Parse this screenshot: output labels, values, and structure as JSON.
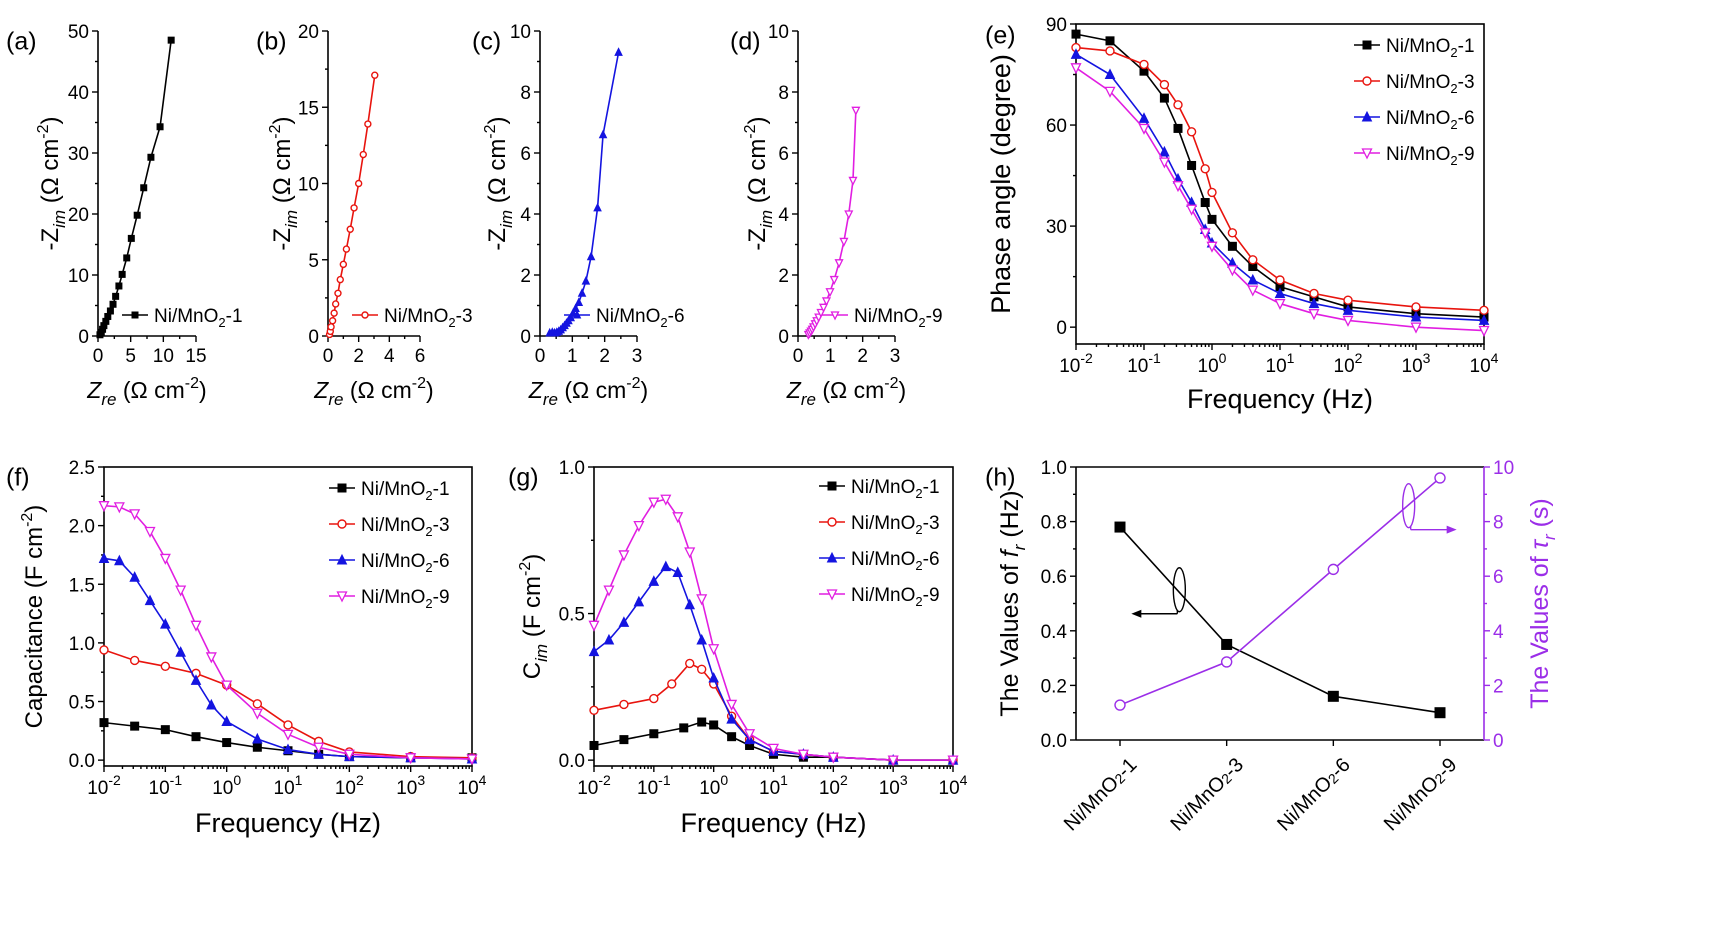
{
  "colors": {
    "ni1": "#000000",
    "ni3": "#e8140e",
    "ni6": "#1414e0",
    "ni9": "#e11ee1",
    "violet": "#9b2ee8"
  },
  "chart_data": [
    {
      "id": "a",
      "type": "line",
      "panel_label": "(a)",
      "xlabel": "Z_re (Ω cm^-2)",
      "ylabel": "-Z_im (Ω cm^-2)",
      "xlim": [
        0,
        15
      ],
      "ylim": [
        0,
        50
      ],
      "xticks": [
        0,
        5,
        10,
        15
      ],
      "xticklabels": [
        "0",
        "5",
        "10",
        "15"
      ],
      "yticks": [
        0,
        10,
        20,
        30,
        40,
        50
      ],
      "yticklabels": [
        "0",
        "10",
        "20",
        "30",
        "40",
        "50"
      ],
      "series": [
        {
          "name": "Ni/MnO2-1",
          "label_main": "Ni/MnO",
          "label_sub": "2",
          "label_tail": "-1",
          "color": "ni1",
          "marker": "square_filled",
          "x": [
            0.3,
            0.5,
            0.7,
            0.9,
            1.2,
            1.5,
            1.9,
            2.3,
            2.7,
            3.2,
            3.7,
            4.4,
            5.1,
            6.0,
            7.0,
            8.1,
            9.5,
            11.2
          ],
          "y": [
            0.2,
            0.6,
            1.1,
            1.7,
            2.4,
            3.2,
            4.1,
            5.2,
            6.5,
            8.2,
            10.1,
            12.8,
            16.0,
            19.8,
            24.3,
            29.3,
            34.3,
            48.5
          ]
        }
      ]
    },
    {
      "id": "b",
      "type": "line",
      "panel_label": "(b)",
      "xlabel": "Z_re (Ω cm^-2)",
      "ylabel": "-Z_im (Ω cm^-2)",
      "xlim": [
        0,
        6
      ],
      "ylim": [
        0,
        20
      ],
      "xticks": [
        0,
        2,
        4,
        6
      ],
      "xticklabels": [
        "0",
        "2",
        "4",
        "6"
      ],
      "yticks": [
        0,
        5,
        10,
        15,
        20
      ],
      "yticklabels": [
        "0",
        "5",
        "10",
        "15",
        "20"
      ],
      "series": [
        {
          "name": "Ni/MnO2-3",
          "label_main": "Ni/MnO",
          "label_sub": "2",
          "label_tail": "-3",
          "color": "ni3",
          "marker": "circle_open",
          "x": [
            0.1,
            0.15,
            0.2,
            0.3,
            0.4,
            0.5,
            0.65,
            0.8,
            1.0,
            1.2,
            1.45,
            1.7,
            2.0,
            2.3,
            2.6,
            3.05
          ],
          "y": [
            0.1,
            0.3,
            0.6,
            1.0,
            1.5,
            2.1,
            2.8,
            3.7,
            4.7,
            5.7,
            7.0,
            8.4,
            10.0,
            11.9,
            13.9,
            17.1
          ]
        }
      ]
    },
    {
      "id": "c",
      "type": "line",
      "panel_label": "(c)",
      "xlabel": "Z_re (Ω cm^-2)",
      "ylabel": "-Z_im (Ω cm^-2)",
      "xlim": [
        0,
        3
      ],
      "ylim": [
        0,
        10
      ],
      "xticks": [
        0,
        1,
        2,
        3
      ],
      "xticklabels": [
        "0",
        "1",
        "2",
        "3"
      ],
      "yticks": [
        0,
        2,
        4,
        6,
        8,
        10
      ],
      "yticklabels": [
        "0",
        "2",
        "4",
        "6",
        "8",
        "10"
      ],
      "series": [
        {
          "name": "Ni/MnO2-6",
          "label_main": "Ni/MnO",
          "label_sub": "2",
          "label_tail": "-6",
          "color": "ni6",
          "marker": "triangle_filled",
          "x": [
            0.3,
            0.38,
            0.45,
            0.52,
            0.58,
            0.64,
            0.7,
            0.76,
            0.82,
            0.88,
            0.95,
            1.02,
            1.1,
            1.2,
            1.3,
            1.42,
            1.58,
            1.78,
            1.95,
            2.43
          ],
          "y": [
            0.1,
            0.12,
            0.1,
            0.12,
            0.15,
            0.2,
            0.27,
            0.34,
            0.42,
            0.5,
            0.6,
            0.74,
            0.9,
            1.1,
            1.4,
            1.8,
            2.6,
            4.2,
            6.6,
            9.3
          ]
        }
      ]
    },
    {
      "id": "d",
      "type": "line",
      "panel_label": "(d)",
      "xlabel": "Z_re (Ω cm^-2)",
      "ylabel": "-Z_im (Ω cm^-2)",
      "xlim": [
        0,
        3
      ],
      "ylim": [
        0,
        10
      ],
      "xticks": [
        0,
        1,
        2,
        3
      ],
      "xticklabels": [
        "0",
        "1",
        "2",
        "3"
      ],
      "yticks": [
        0,
        2,
        4,
        6,
        8,
        10
      ],
      "yticklabels": [
        "0",
        "2",
        "4",
        "6",
        "8",
        "10"
      ],
      "series": [
        {
          "name": "Ni/MnO2-9",
          "label_main": "Ni/MnO",
          "label_sub": "2",
          "label_tail": "-9",
          "color": "ni9",
          "marker": "triangle_down_open",
          "x": [
            0.32,
            0.36,
            0.4,
            0.44,
            0.48,
            0.53,
            0.58,
            0.64,
            0.71,
            0.79,
            0.88,
            0.99,
            1.12,
            1.27,
            1.42,
            1.57,
            1.7,
            1.79
          ],
          "y": [
            0.05,
            0.1,
            0.16,
            0.22,
            0.3,
            0.4,
            0.5,
            0.62,
            0.77,
            0.94,
            1.15,
            1.45,
            1.85,
            2.4,
            3.1,
            4.0,
            5.1,
            7.4
          ]
        }
      ]
    },
    {
      "id": "e",
      "type": "line",
      "panel_label": "(e)",
      "xscale": "log",
      "xlabel": "Frequency (Hz)",
      "ylabel": "Phase angle (degree)",
      "xlim": [
        -2,
        4
      ],
      "ylim": [
        -5,
        90
      ],
      "xticks": [
        -2,
        -1,
        0,
        1,
        2,
        3,
        4
      ],
      "xticklabels": [
        "10^-2",
        "10^-1",
        "10^0",
        "10^1",
        "10^2",
        "10^3",
        "10^4"
      ],
      "yticks": [
        0,
        30,
        60,
        90
      ],
      "yticklabels": [
        "0",
        "30",
        "60",
        "90"
      ],
      "legend": "top-right",
      "series": [
        {
          "name": "Ni/MnO2-1",
          "label_main": "Ni/MnO",
          "label_sub": "2",
          "label_tail": "-1",
          "color": "ni1",
          "marker": "square_filled",
          "logx": [
            -2,
            -1.5,
            -1,
            -0.7,
            -0.5,
            -0.3,
            -0.1,
            0,
            0.3,
            0.6,
            1,
            1.5,
            2,
            3,
            4
          ],
          "y": [
            87,
            85,
            76,
            68,
            59,
            48,
            37,
            32,
            24,
            18,
            12,
            9,
            6,
            4,
            3
          ]
        },
        {
          "name": "Ni/MnO2-3",
          "label_main": "Ni/MnO",
          "label_sub": "2",
          "label_tail": "-3",
          "color": "ni3",
          "marker": "circle_open",
          "logx": [
            -2,
            -1.5,
            -1,
            -0.7,
            -0.5,
            -0.3,
            -0.1,
            0,
            0.3,
            0.6,
            1,
            1.5,
            2,
            3,
            4
          ],
          "y": [
            83,
            82,
            78,
            72,
            66,
            58,
            47,
            40,
            28,
            20,
            14,
            10,
            8,
            6,
            5
          ]
        },
        {
          "name": "Ni/MnO2-6",
          "label_main": "Ni/MnO",
          "label_sub": "2",
          "label_tail": "-6",
          "color": "ni6",
          "marker": "triangle_filled",
          "logx": [
            -2,
            -1.5,
            -1,
            -0.7,
            -0.5,
            -0.3,
            -0.1,
            0,
            0.3,
            0.6,
            1,
            1.5,
            2,
            3,
            4
          ],
          "y": [
            81,
            75,
            62,
            52,
            44,
            37,
            29,
            25,
            19,
            14,
            10,
            7,
            5,
            3,
            2
          ]
        },
        {
          "name": "Ni/MnO2-9",
          "label_main": "Ni/MnO",
          "label_sub": "2",
          "label_tail": "-9",
          "color": "ni9",
          "marker": "triangle_down_open",
          "logx": [
            -2,
            -1.5,
            -1,
            -0.7,
            -0.5,
            -0.3,
            -0.1,
            0,
            0.3,
            0.6,
            1,
            1.5,
            2,
            3,
            4
          ],
          "y": [
            77,
            70,
            59,
            49,
            42,
            35,
            28,
            24,
            17,
            11,
            7,
            4,
            2,
            0,
            -1
          ]
        }
      ]
    },
    {
      "id": "f",
      "type": "line",
      "panel_label": "(f)",
      "xscale": "log",
      "xlabel": "Frequency (Hz)",
      "ylabel": "Capacitance (F cm^-2)",
      "xlim": [
        -2,
        4
      ],
      "ylim": [
        -0.05,
        2.5
      ],
      "xticks": [
        -2,
        -1,
        0,
        1,
        2,
        3,
        4
      ],
      "xticklabels": [
        "10^-2",
        "10^-1",
        "10^0",
        "10^1",
        "10^2",
        "10^3",
        "10^4"
      ],
      "yticks": [
        0,
        0.5,
        1.0,
        1.5,
        2.0,
        2.5
      ],
      "yticklabels": [
        "0.0",
        "0.5",
        "1.0",
        "1.5",
        "2.0",
        "2.5"
      ],
      "legend": "top-right",
      "series": [
        {
          "name": "Ni/MnO2-1",
          "label_main": "Ni/MnO",
          "label_sub": "2",
          "label_tail": "-1",
          "color": "ni1",
          "marker": "square_filled",
          "logx": [
            -2,
            -1.5,
            -1,
            -0.5,
            0,
            0.5,
            1,
            1.5,
            2,
            3,
            4
          ],
          "y": [
            0.32,
            0.29,
            0.26,
            0.2,
            0.15,
            0.11,
            0.08,
            0.05,
            0.03,
            0.02,
            0.02
          ]
        },
        {
          "name": "Ni/MnO2-3",
          "label_main": "Ni/MnO",
          "label_sub": "2",
          "label_tail": "-3",
          "color": "ni3",
          "marker": "circle_open",
          "logx": [
            -2,
            -1.5,
            -1,
            -0.5,
            0,
            0.5,
            1,
            1.5,
            2,
            3,
            4
          ],
          "y": [
            0.94,
            0.85,
            0.8,
            0.74,
            0.64,
            0.48,
            0.3,
            0.16,
            0.07,
            0.03,
            0.02
          ]
        },
        {
          "name": "Ni/MnO2-6",
          "label_main": "Ni/MnO",
          "label_sub": "2",
          "label_tail": "-6",
          "color": "ni6",
          "marker": "triangle_filled",
          "logx": [
            -2,
            -1.75,
            -1.5,
            -1.25,
            -1,
            -0.75,
            -0.5,
            -0.25,
            0,
            0.5,
            1,
            1.5,
            2,
            3,
            4
          ],
          "y": [
            1.72,
            1.7,
            1.56,
            1.36,
            1.16,
            0.92,
            0.68,
            0.47,
            0.33,
            0.18,
            0.09,
            0.05,
            0.03,
            0.02,
            0.01
          ]
        },
        {
          "name": "Ni/MnO2-9",
          "label_main": "Ni/MnO",
          "label_sub": "2",
          "label_tail": "-9",
          "color": "ni9",
          "marker": "triangle_down_open",
          "logx": [
            -2,
            -1.75,
            -1.5,
            -1.25,
            -1,
            -0.75,
            -0.5,
            -0.25,
            0,
            0.5,
            1,
            1.5,
            2,
            3,
            4
          ],
          "y": [
            2.17,
            2.16,
            2.1,
            1.95,
            1.72,
            1.45,
            1.15,
            0.88,
            0.64,
            0.4,
            0.22,
            0.11,
            0.05,
            0.02,
            0.01
          ]
        }
      ]
    },
    {
      "id": "g",
      "type": "line",
      "panel_label": "(g)",
      "xscale": "log",
      "xlabel": "Frequency (Hz)",
      "ylabel": "C_im (F cm^-2)",
      "xlim": [
        -2,
        4
      ],
      "ylim": [
        -0.02,
        1.0
      ],
      "xticks": [
        -2,
        -1,
        0,
        1,
        2,
        3,
        4
      ],
      "xticklabels": [
        "10^-2",
        "10^-1",
        "10^0",
        "10^1",
        "10^2",
        "10^3",
        "10^4"
      ],
      "yticks": [
        0,
        0.5,
        1.0
      ],
      "yticklabels": [
        "0.0",
        "0.5",
        "1.0"
      ],
      "legend": "top-right",
      "series": [
        {
          "name": "Ni/MnO2-1",
          "label_main": "Ni/MnO",
          "label_sub": "2",
          "label_tail": "-1",
          "color": "ni1",
          "marker": "square_filled",
          "logx": [
            -2,
            -1.5,
            -1,
            -0.5,
            -0.2,
            0,
            0.3,
            0.6,
            1,
            1.5,
            2,
            3,
            4
          ],
          "y": [
            0.05,
            0.07,
            0.09,
            0.11,
            0.13,
            0.12,
            0.08,
            0.05,
            0.02,
            0.01,
            0.01,
            0.0,
            0.0
          ]
        },
        {
          "name": "Ni/MnO2-3",
          "label_main": "Ni/MnO",
          "label_sub": "2",
          "label_tail": "-3",
          "color": "ni3",
          "marker": "circle_open",
          "logx": [
            -2,
            -1.5,
            -1,
            -0.7,
            -0.4,
            -0.2,
            0,
            0.3,
            0.6,
            1,
            1.5,
            2,
            3,
            4
          ],
          "y": [
            0.17,
            0.19,
            0.21,
            0.26,
            0.33,
            0.31,
            0.26,
            0.15,
            0.07,
            0.03,
            0.02,
            0.01,
            0.0,
            0.0
          ]
        },
        {
          "name": "Ni/MnO2-6",
          "label_main": "Ni/MnO",
          "label_sub": "2",
          "label_tail": "-6",
          "color": "ni6",
          "marker": "triangle_filled",
          "logx": [
            -2,
            -1.75,
            -1.5,
            -1.25,
            -1,
            -0.8,
            -0.6,
            -0.4,
            -0.2,
            0,
            0.3,
            0.6,
            1,
            1.5,
            2,
            3,
            4
          ],
          "y": [
            0.37,
            0.41,
            0.47,
            0.54,
            0.61,
            0.66,
            0.64,
            0.53,
            0.41,
            0.28,
            0.14,
            0.07,
            0.03,
            0.02,
            0.01,
            0.0,
            0.0
          ]
        },
        {
          "name": "Ni/MnO2-9",
          "label_main": "Ni/MnO",
          "label_sub": "2",
          "label_tail": "-9",
          "color": "ni9",
          "marker": "triangle_down_open",
          "logx": [
            -2,
            -1.75,
            -1.5,
            -1.25,
            -1,
            -0.8,
            -0.6,
            -0.4,
            -0.2,
            0,
            0.3,
            0.6,
            1,
            1.5,
            2,
            3,
            4
          ],
          "y": [
            0.46,
            0.58,
            0.7,
            0.8,
            0.88,
            0.89,
            0.83,
            0.71,
            0.55,
            0.38,
            0.19,
            0.09,
            0.04,
            0.02,
            0.01,
            0.0,
            0.0
          ]
        }
      ]
    },
    {
      "id": "h",
      "type": "line",
      "panel_label": "(h)",
      "categories": [
        "Ni/MnO2-1",
        "Ni/MnO2-3",
        "Ni/MnO2-6",
        "Ni/MnO2-9"
      ],
      "category_main": "Ni/MnO",
      "category_sub": "2",
      "category_tails": [
        "-1",
        "-3",
        "-6",
        "-9"
      ],
      "ylabel": "The Values of f_r (Hz)",
      "y2label": "The Values of τ_r (s)",
      "ylim": [
        0,
        1.0
      ],
      "y2lim": [
        0,
        10
      ],
      "yticks": [
        0,
        0.2,
        0.4,
        0.6,
        0.8,
        1.0
      ],
      "yticklabels": [
        "0.0",
        "0.2",
        "0.4",
        "0.6",
        "0.8",
        "1.0"
      ],
      "y2ticks": [
        0,
        2,
        4,
        6,
        8,
        10
      ],
      "y2ticklabels": [
        "0",
        "2",
        "4",
        "6",
        "8",
        "10"
      ],
      "series": [
        {
          "name": "f_r",
          "axis": "left",
          "color": "ni1",
          "marker": "square_filled",
          "values": [
            0.78,
            0.35,
            0.16,
            0.1
          ]
        },
        {
          "name": "τ_r",
          "axis": "right",
          "color": "violet",
          "marker": "circle_open",
          "values": [
            1.28,
            2.86,
            6.25,
            9.6
          ]
        }
      ]
    }
  ]
}
